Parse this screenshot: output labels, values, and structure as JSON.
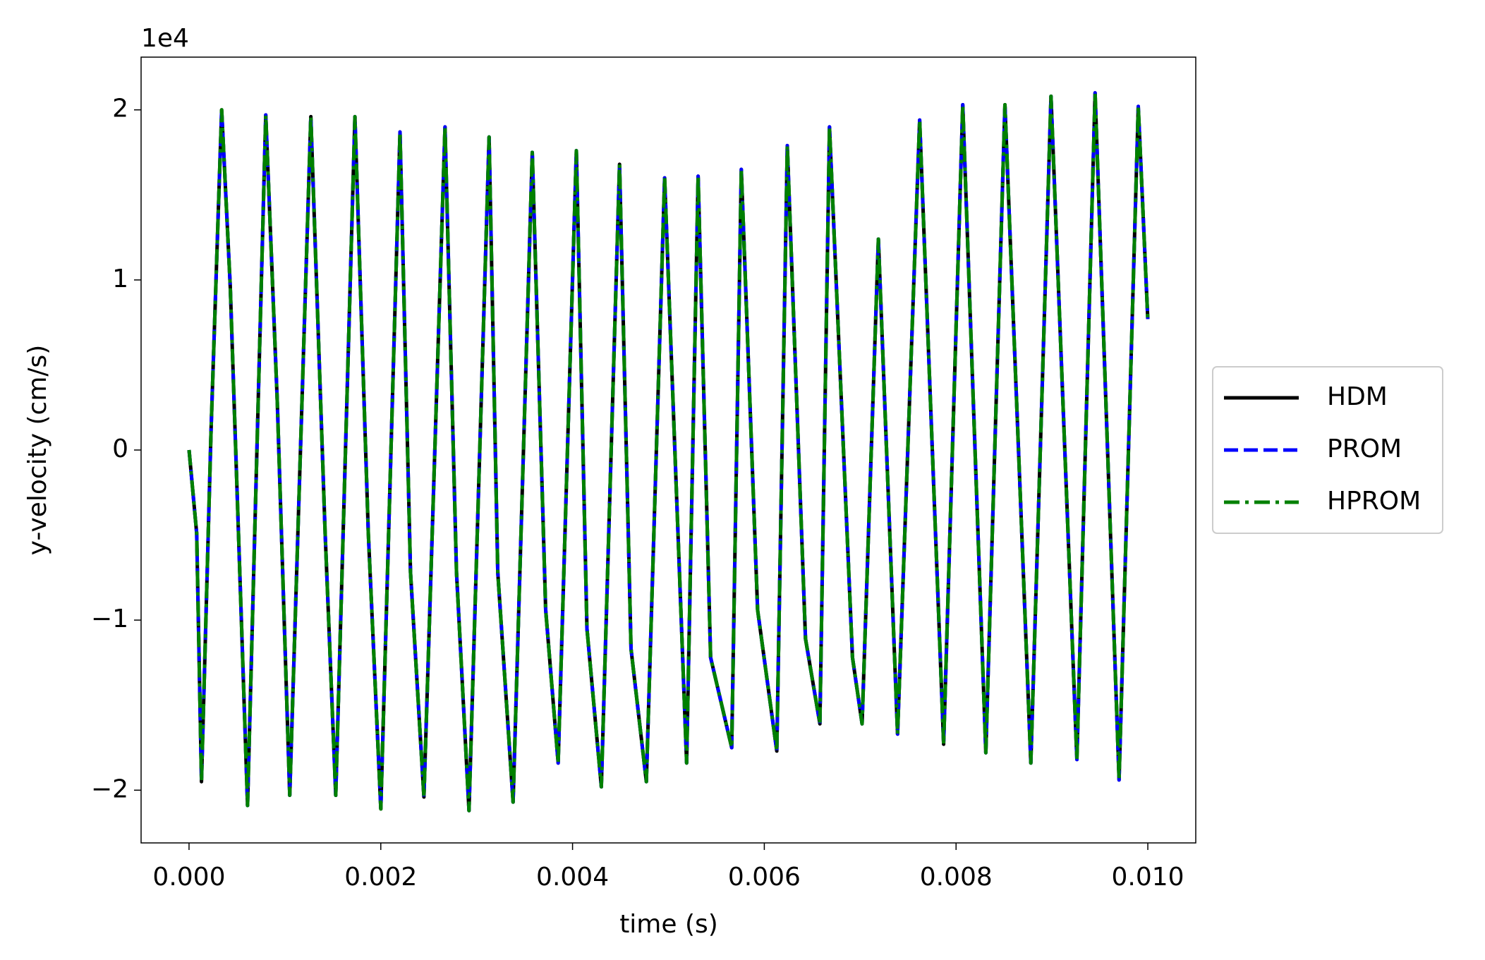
{
  "chart_data": {
    "type": "line",
    "xlabel": "time (s)",
    "ylabel": "y-velocity (cm/s)",
    "y_offset_label": "1e4",
    "x": [
      0,
      8e-05,
      0.00013,
      0.00023,
      0.00034,
      0.00043,
      0.00061,
      0.0008,
      0.00092,
      0.00105,
      0.00127,
      0.00142,
      0.00153,
      0.00173,
      0.00187,
      0.002,
      0.0022,
      0.00231,
      0.00245,
      0.00267,
      0.00279,
      0.00292,
      0.00313,
      0.00322,
      0.00338,
      0.00358,
      0.00372,
      0.00385,
      0.00404,
      0.00415,
      0.0043,
      0.00449,
      0.00461,
      0.00477,
      0.00496,
      0.00519,
      0.00531,
      0.00544,
      0.00566,
      0.00576,
      0.00593,
      0.00613,
      0.00624,
      0.00643,
      0.00658,
      0.00668,
      0.00692,
      0.00702,
      0.00719,
      0.00739,
      0.00762,
      0.00787,
      0.00807,
      0.00831,
      0.00851,
      0.00878,
      0.00899,
      0.00926,
      0.00945,
      0.0097,
      0.0099,
      0.01
    ],
    "series": [
      {
        "name": "HDM",
        "color": "#000000",
        "dash": "solid",
        "values": [
          0,
          -4900,
          -19500,
          1200,
          20000,
          9600,
          -20900,
          19700,
          2900,
          -20300,
          19600,
          -4900,
          -20300,
          19600,
          -4900,
          -21100,
          18700,
          -7200,
          -20400,
          19000,
          -7200,
          -21200,
          18400,
          -7200,
          -20700,
          17500,
          -9400,
          -18400,
          17600,
          -10500,
          -19800,
          16800,
          -11700,
          -19500,
          16000,
          -18400,
          16100,
          -12200,
          -17500,
          16500,
          -9400,
          -17700,
          17900,
          -11100,
          -16100,
          19000,
          -12200,
          -16100,
          12400,
          -16700,
          19400,
          -17300,
          20300,
          -17800,
          20300,
          -18400,
          20800,
          -18200,
          21000,
          -19400,
          20200,
          7700
        ]
      },
      {
        "name": "PROM",
        "color": "#0000ff",
        "dash": "dashed",
        "values": [
          0,
          -4900,
          -19500,
          1200,
          20000,
          9600,
          -20900,
          19700,
          2900,
          -20300,
          19600,
          -4900,
          -20300,
          19600,
          -4900,
          -21100,
          18700,
          -7200,
          -20400,
          19000,
          -7200,
          -21200,
          18400,
          -7200,
          -20700,
          17500,
          -9400,
          -18400,
          17600,
          -10500,
          -19800,
          16800,
          -11700,
          -19500,
          16000,
          -18400,
          16100,
          -12200,
          -17500,
          16500,
          -9400,
          -17700,
          17900,
          -11100,
          -16100,
          19000,
          -12200,
          -16100,
          12400,
          -16700,
          19400,
          -17300,
          20300,
          -17800,
          20300,
          -18400,
          20800,
          -18200,
          21000,
          -19400,
          20200,
          7700
        ]
      },
      {
        "name": "HPROM",
        "color": "#008000",
        "dash": "dashdot",
        "values": [
          0,
          -4900,
          -19500,
          1200,
          20000,
          9600,
          -20900,
          19700,
          2900,
          -20300,
          19600,
          -4900,
          -20300,
          19600,
          -4900,
          -21100,
          18700,
          -7200,
          -20400,
          19000,
          -7200,
          -21200,
          18400,
          -7200,
          -20700,
          17500,
          -9400,
          -18400,
          17600,
          -10500,
          -19800,
          16800,
          -11700,
          -19500,
          16000,
          -18400,
          16100,
          -12200,
          -17500,
          16500,
          -9400,
          -17700,
          17900,
          -11100,
          -16100,
          19000,
          -12200,
          -16100,
          12400,
          -16700,
          19400,
          -17300,
          20300,
          -17800,
          20300,
          -18400,
          20800,
          -18200,
          21000,
          -19400,
          20200,
          7700
        ]
      }
    ],
    "xlim": [
      -0.0005,
      0.0105
    ],
    "xticks": [
      {
        "value": 0,
        "label": "0.000"
      },
      {
        "value": 0.002,
        "label": "0.002"
      },
      {
        "value": 0.004,
        "label": "0.004"
      },
      {
        "value": 0.006,
        "label": "0.006"
      },
      {
        "value": 0.008,
        "label": "0.008"
      },
      {
        "value": 0.01,
        "label": "0.010"
      }
    ],
    "ylim": [
      -23100,
      23100
    ],
    "yticks": [
      {
        "value": -20000,
        "label": "−2"
      },
      {
        "value": -10000,
        "label": "−1"
      },
      {
        "value": 0,
        "label": "0"
      },
      {
        "value": 10000,
        "label": "1"
      },
      {
        "value": 20000,
        "label": "2"
      }
    ],
    "grid": false,
    "legend": "center right"
  }
}
